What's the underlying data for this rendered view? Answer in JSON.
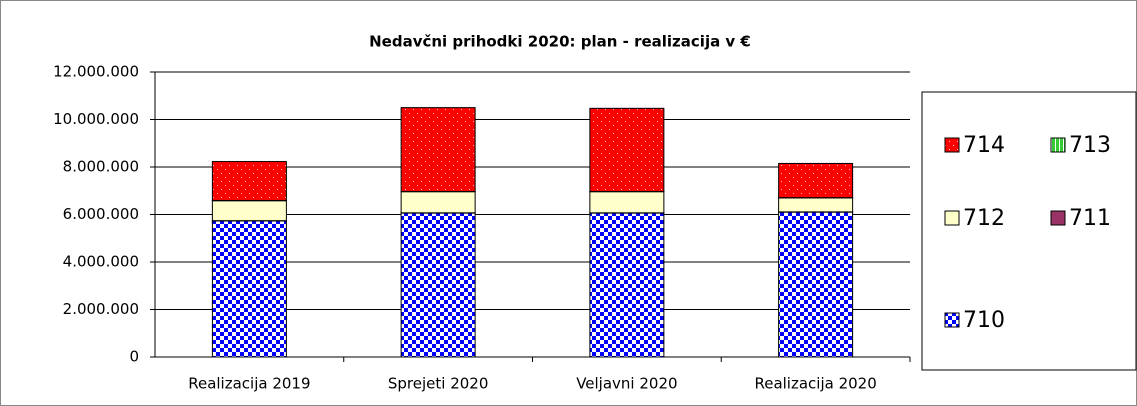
{
  "chart_data": {
    "type": "stacked_bar",
    "title": "Nedavčni prihodki 2020: plan - realizacija v €",
    "categories": [
      "Realizacija 2019",
      "Sprejeti 2020",
      "Veljavni 2020",
      "Realizacija 2020"
    ],
    "series": [
      {
        "name": "710",
        "color": "#0000ff",
        "values": [
          5730000,
          6060000,
          6060000,
          6100000
        ]
      },
      {
        "name": "711",
        "color": "#993366",
        "values": [
          10000,
          10000,
          10000,
          10000
        ]
      },
      {
        "name": "712",
        "color": "#ffffcc",
        "values": [
          840000,
          890000,
          890000,
          590000
        ]
      },
      {
        "name": "713",
        "color": "#33cc33",
        "values": [
          10000,
          10000,
          10000,
          10000
        ]
      },
      {
        "name": "714",
        "color": "#ff0000",
        "values": [
          1640000,
          3530000,
          3500000,
          1440000
        ]
      }
    ],
    "ylim": [
      0,
      12000000
    ],
    "yticks": [
      0,
      {
        "value": 2000000,
        "label": "2.000.000"
      },
      {
        "value": 4000000,
        "label": "4.000.000"
      },
      {
        "value": 6000000,
        "label": "6.000.000"
      },
      {
        "value": 8000000,
        "label": "8.000.000"
      },
      {
        "value": 10000000,
        "label": "10.000.000"
      },
      {
        "value": 12000000,
        "label": "12.000.000"
      }
    ],
    "grid": true,
    "legend": "right"
  }
}
